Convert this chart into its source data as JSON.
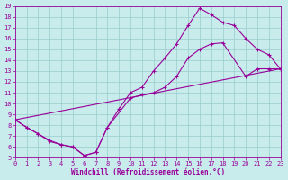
{
  "xlabel": "Windchill (Refroidissement éolien,°C)",
  "bg_color": "#c8ecec",
  "line_color": "#990099",
  "xmin": 0,
  "xmax": 23,
  "ymin": 5,
  "ymax": 19,
  "line1_x": [
    0,
    1,
    2,
    3,
    4,
    5,
    6,
    7,
    8,
    9,
    10,
    11,
    12,
    13,
    14,
    15,
    16,
    17,
    18,
    19,
    20,
    21,
    22,
    23
  ],
  "line1_y": [
    8.5,
    7.8,
    7.2,
    6.6,
    6.2,
    6.0,
    5.2,
    5.5,
    7.8,
    9.5,
    11.0,
    11.5,
    13.0,
    14.2,
    15.5,
    17.2,
    18.8,
    18.2,
    17.5,
    17.2,
    16.0,
    15.0,
    14.5,
    13.2
  ],
  "line2_x": [
    0,
    1,
    2,
    3,
    4,
    5,
    6,
    7,
    8,
    10,
    11,
    12,
    13,
    14,
    15,
    16,
    17,
    18,
    20,
    21,
    22,
    23
  ],
  "line2_y": [
    8.5,
    7.8,
    7.2,
    6.5,
    6.2,
    6.0,
    5.2,
    5.5,
    7.8,
    10.5,
    10.8,
    11.0,
    11.5,
    12.5,
    14.2,
    15.0,
    15.5,
    15.6,
    12.5,
    13.2,
    13.2,
    13.2
  ],
  "line3_x": [
    0,
    23
  ],
  "line3_y": [
    8.5,
    13.2
  ],
  "grid_color": "#99cccc",
  "marker": "+"
}
